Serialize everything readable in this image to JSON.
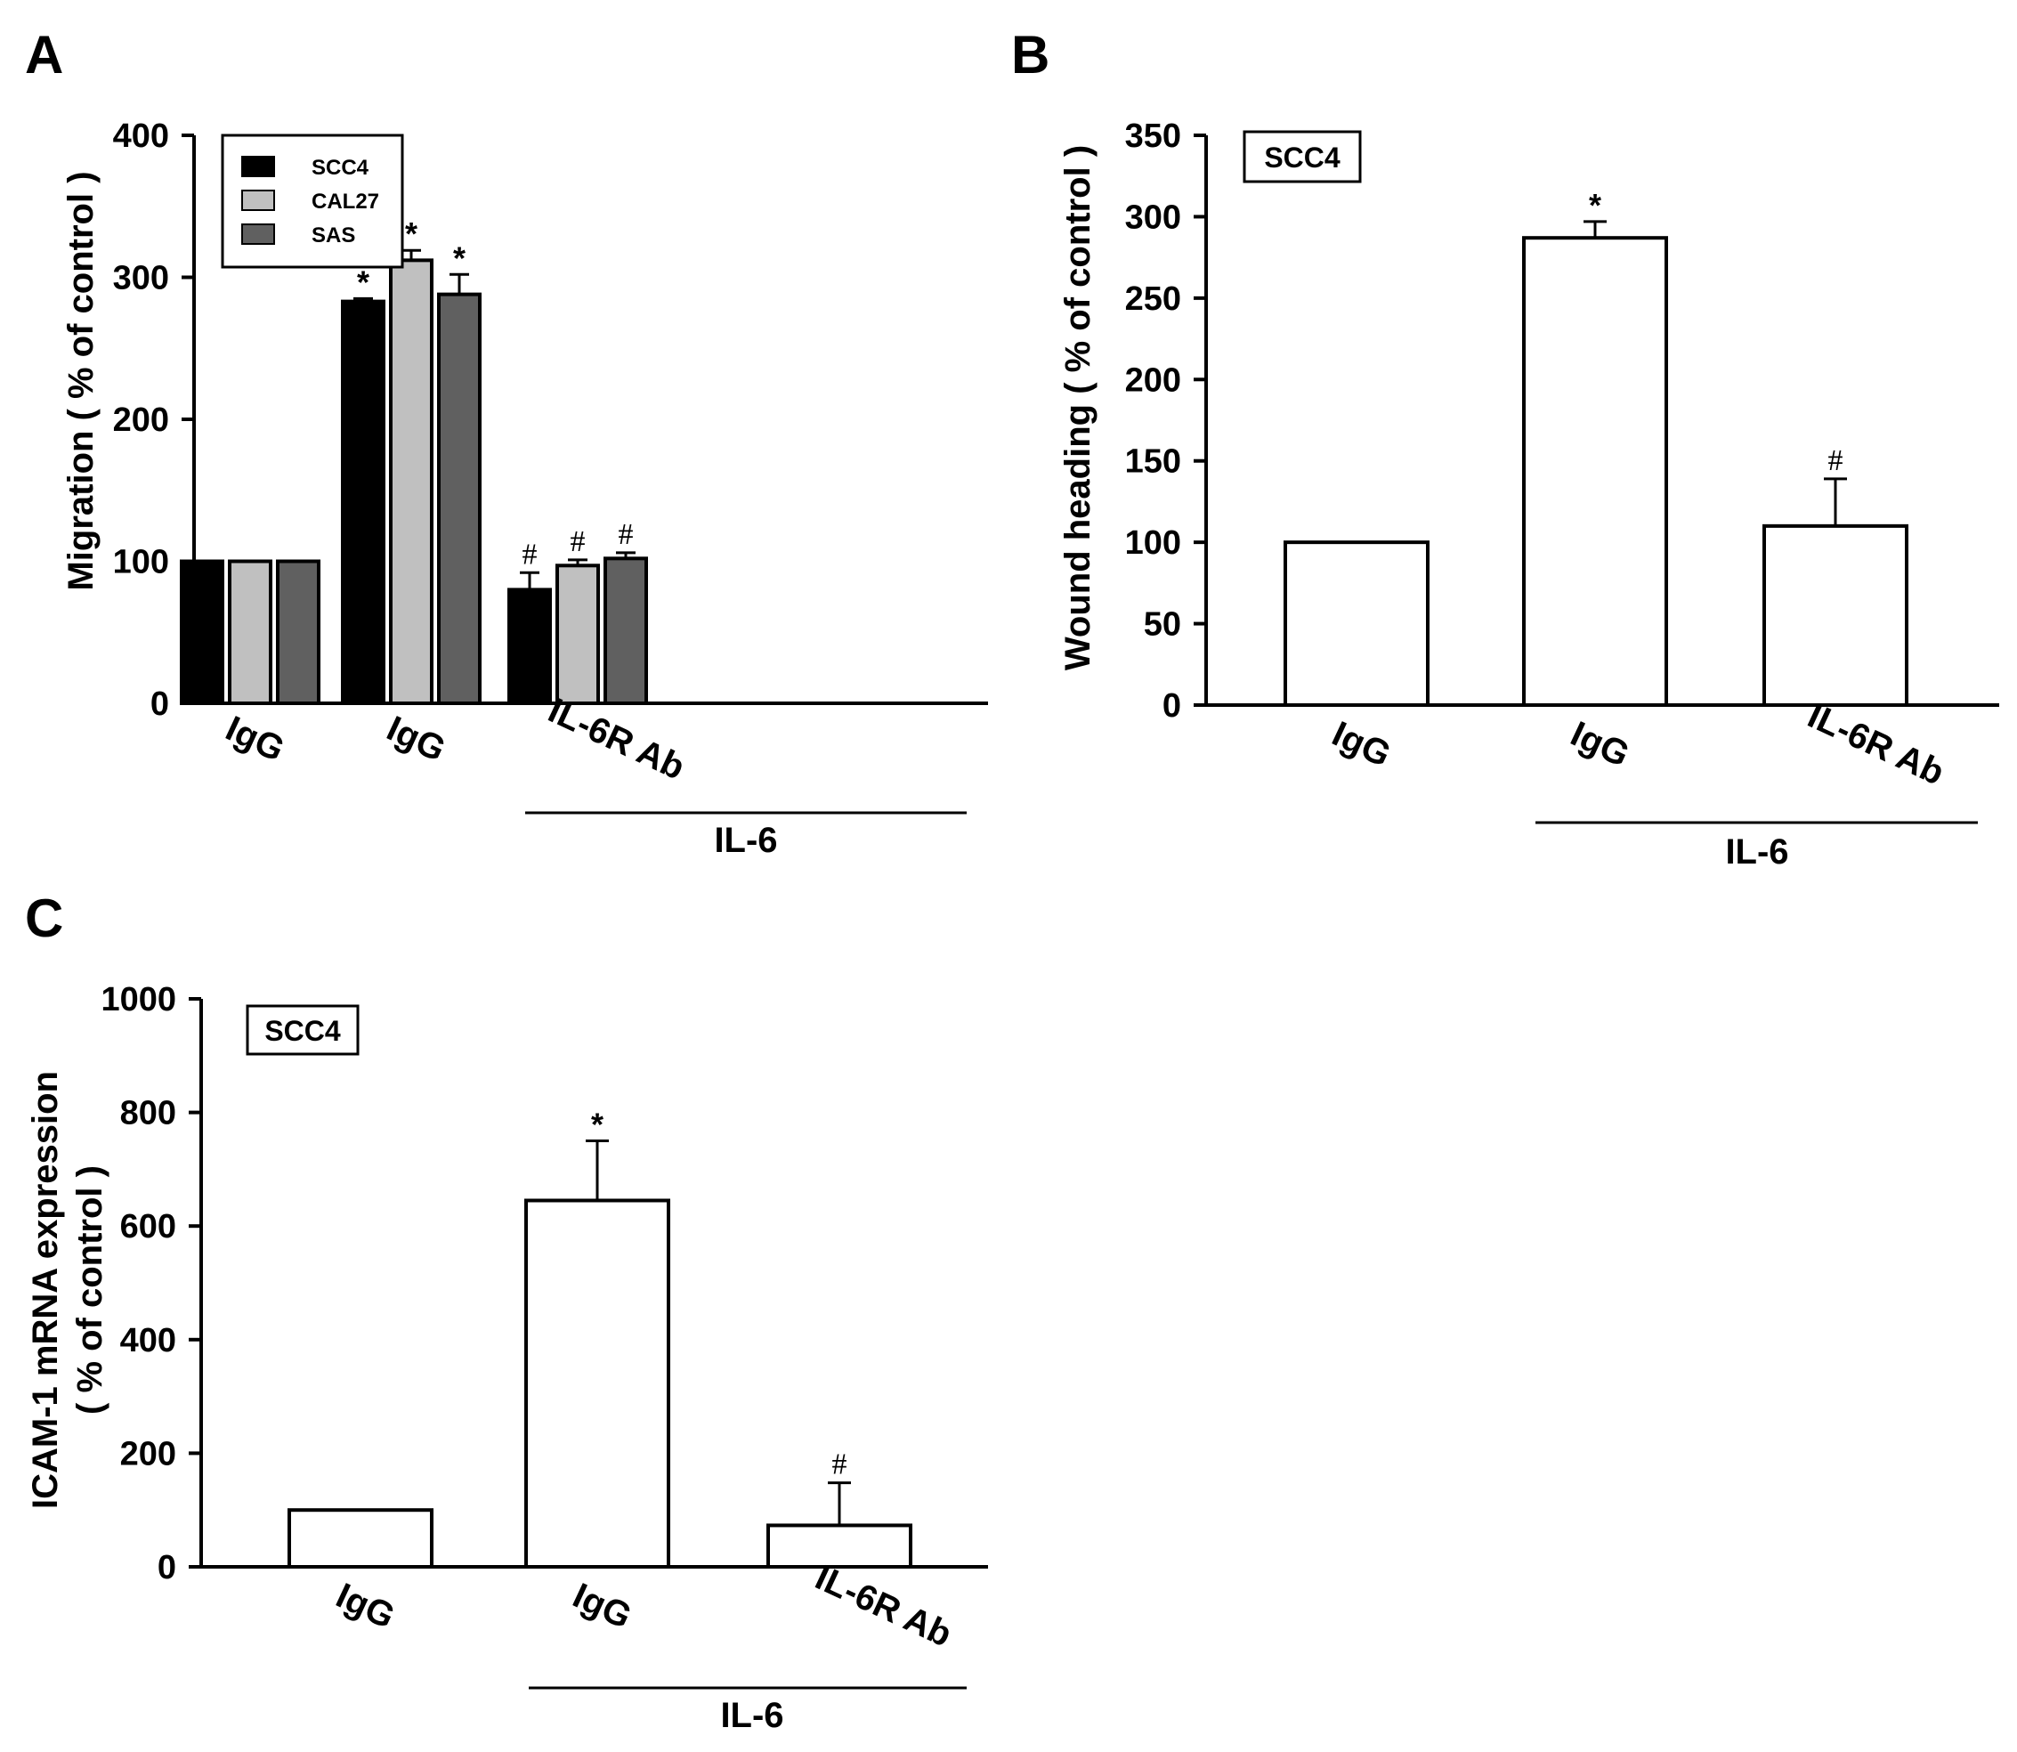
{
  "colors": {
    "SCC4": "#000000",
    "CAL27": "#c0c0c0",
    "SAS": "#606060",
    "single": "#ffffff",
    "outline": "#000000"
  },
  "chart_data": [
    {
      "panel": "A",
      "type": "bar",
      "ylabel": "Migration ( % of control )",
      "ylim": [
        0,
        400
      ],
      "yticks": [
        0,
        100,
        200,
        300,
        400
      ],
      "categories": [
        "IgG",
        "IgG",
        "IL-6R Ab"
      ],
      "group_label": "IL-6",
      "grouped_categories": [
        1,
        2
      ],
      "legend": {
        "position": "top-left",
        "entries": [
          "SCC4",
          "CAL27",
          "SAS"
        ]
      },
      "series": [
        {
          "name": "SCC4",
          "values": [
            100,
            283,
            80
          ],
          "errors": [
            0,
            2,
            12
          ],
          "markers": [
            "",
            "*",
            "#"
          ]
        },
        {
          "name": "CAL27",
          "values": [
            100,
            312,
            97
          ],
          "errors": [
            0,
            7,
            4
          ],
          "markers": [
            "",
            "*",
            "#"
          ]
        },
        {
          "name": "SAS",
          "values": [
            100,
            288,
            102
          ],
          "errors": [
            0,
            14,
            4
          ],
          "markers": [
            "",
            "*",
            "#"
          ]
        }
      ]
    },
    {
      "panel": "B",
      "type": "bar",
      "ylabel": "Wound heading ( % of control )",
      "ylim": [
        0,
        350
      ],
      "yticks": [
        0,
        50,
        100,
        150,
        200,
        250,
        300,
        350
      ],
      "categories": [
        "IgG",
        "IgG",
        "IL-6R Ab"
      ],
      "group_label": "IL-6",
      "grouped_categories": [
        1,
        2
      ],
      "box_label": "SCC4",
      "series": [
        {
          "name": "SCC4",
          "values": [
            100,
            287,
            110
          ],
          "errors": [
            0,
            10,
            29
          ],
          "markers": [
            "",
            "*",
            "#"
          ]
        }
      ]
    },
    {
      "panel": "C",
      "type": "bar",
      "ylabel": "ICAM-1 mRNA expression",
      "ylabel2": "( % of control )",
      "ylim": [
        0,
        1000
      ],
      "yticks": [
        0,
        200,
        400,
        600,
        800,
        1000
      ],
      "categories": [
        "IgG",
        "IgG",
        "IL-6R Ab"
      ],
      "group_label": "IL-6",
      "grouped_categories": [
        1,
        2
      ],
      "box_label": "SCC4",
      "series": [
        {
          "name": "SCC4",
          "values": [
            100,
            645,
            73
          ],
          "errors": [
            0,
            105,
            75
          ],
          "markers": [
            "",
            "*",
            "#"
          ]
        }
      ]
    }
  ]
}
